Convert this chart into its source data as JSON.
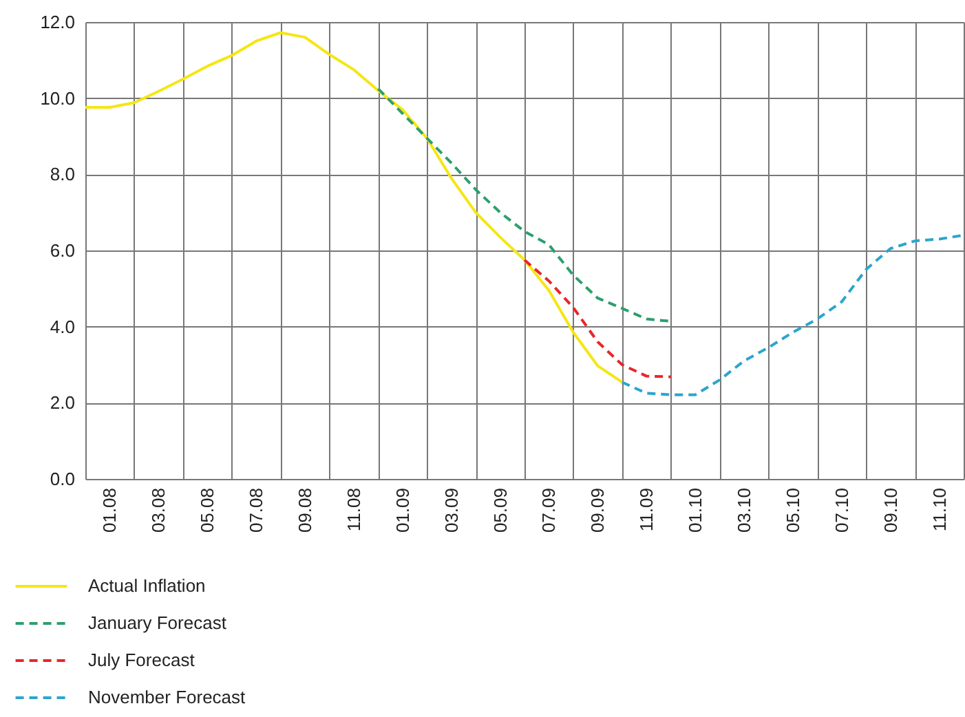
{
  "chart_data": {
    "type": "line",
    "categories": [
      null,
      "01.08",
      null,
      "03.08",
      null,
      "05.08",
      null,
      "07.08",
      null,
      "09.08",
      null,
      "11.08",
      null,
      "01.09",
      null,
      "03.09",
      null,
      "05.09",
      null,
      "07.09",
      null,
      "09.09",
      null,
      "11.09",
      null,
      "01.10",
      null,
      "03.10",
      null,
      "05.10",
      null,
      "07.10",
      null,
      "09.10",
      null,
      "11.10",
      null
    ],
    "series": [
      {
        "name": "Actual Inflation",
        "color": "#f5e614",
        "line_style": "solid",
        "values": [
          9.76,
          9.76,
          9.88,
          10.18,
          10.5,
          10.84,
          11.12,
          11.5,
          11.72,
          11.6,
          11.15,
          10.75,
          10.2,
          9.7,
          8.95,
          7.9,
          7.0,
          6.35,
          5.75,
          4.95,
          3.85,
          2.97,
          2.54,
          null,
          null,
          null,
          null,
          null,
          null,
          null,
          null,
          null,
          null,
          null,
          null,
          null,
          null
        ]
      },
      {
        "name": "January Forecast",
        "color": "#2e9e6e",
        "line_style": "dashed",
        "values": [
          null,
          null,
          null,
          null,
          null,
          null,
          null,
          null,
          null,
          null,
          null,
          null,
          10.25,
          9.6,
          8.95,
          8.3,
          7.6,
          7.0,
          6.5,
          6.15,
          5.35,
          4.75,
          4.48,
          4.2,
          4.14,
          null,
          null,
          null,
          null,
          null,
          null,
          null,
          null,
          null,
          null,
          null,
          null
        ]
      },
      {
        "name": "July Forecast",
        "color": "#e8262b",
        "line_style": "dashed",
        "values": [
          null,
          null,
          null,
          null,
          null,
          null,
          null,
          null,
          null,
          null,
          null,
          null,
          null,
          null,
          null,
          null,
          null,
          null,
          5.75,
          5.2,
          4.5,
          3.6,
          3.0,
          2.7,
          2.68,
          null,
          null,
          null,
          null,
          null,
          null,
          null,
          null,
          null,
          null,
          null,
          null
        ]
      },
      {
        "name": "November Forecast",
        "color": "#2ba5cc",
        "line_style": "dashed",
        "values": [
          null,
          null,
          null,
          null,
          null,
          null,
          null,
          null,
          null,
          null,
          null,
          null,
          null,
          null,
          null,
          null,
          null,
          null,
          null,
          null,
          null,
          null,
          2.54,
          2.25,
          2.21,
          2.21,
          2.6,
          3.1,
          3.45,
          3.85,
          4.2,
          4.65,
          5.5,
          6.05,
          6.25,
          6.3,
          6.4
        ]
      }
    ],
    "ylim": [
      0,
      12
    ],
    "yticks": [
      {
        "value": 0,
        "label": "0.0"
      },
      {
        "value": 2,
        "label": "2.0"
      },
      {
        "value": 4,
        "label": "4.0"
      },
      {
        "value": 6,
        "label": "6.0"
      },
      {
        "value": 8,
        "label": "8.0"
      },
      {
        "value": 10,
        "label": "10.0"
      },
      {
        "value": 12,
        "label": "12.0"
      }
    ],
    "grid": true,
    "legend": "bottom left"
  }
}
